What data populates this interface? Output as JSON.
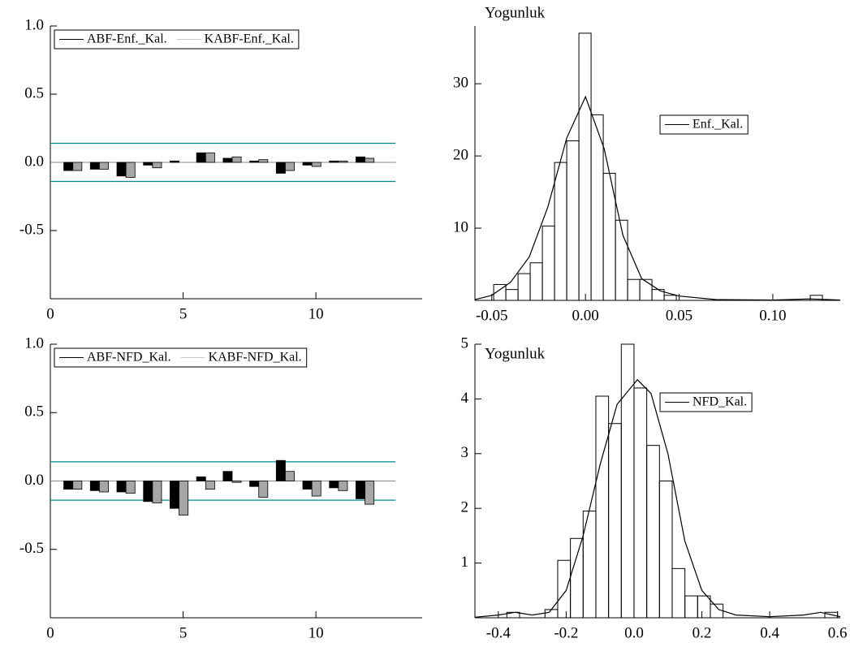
{
  "chart_data": [
    {
      "type": "acf",
      "x": [
        1,
        2,
        3,
        4,
        5,
        6,
        7,
        8,
        9,
        10,
        11,
        12
      ],
      "series": [
        {
          "name": "ABF-Enf._Kal.",
          "color": "#000000",
          "values": [
            -0.06,
            -0.05,
            -0.1,
            -0.02,
            0.01,
            0.07,
            0.03,
            0.01,
            -0.08,
            -0.02,
            0.01,
            0.04
          ]
        },
        {
          "name": "KABF-Enf._Kal.",
          "color": "#a6a6a6",
          "values": [
            -0.06,
            -0.05,
            -0.11,
            -0.04,
            0.0,
            0.07,
            0.04,
            0.02,
            -0.06,
            -0.03,
            0.01,
            0.03
          ]
        }
      ],
      "confidence_bands": [
        0.14,
        -0.14
      ],
      "band_color": "#008b8b",
      "xlim": [
        0,
        14
      ],
      "xticks": [
        0,
        5,
        10
      ],
      "ylim": [
        -1,
        1
      ],
      "yticks": [
        {
          "value": 1,
          "label": "1.0"
        },
        {
          "value": 0.5,
          "label": "0.5"
        },
        {
          "value": 0,
          "label": "0.0"
        },
        {
          "value": -0.5,
          "label": "-0.5"
        }
      ],
      "legend": "upper left"
    },
    {
      "type": "histogram",
      "ylabel": "Yogunluk",
      "bins": [
        -0.049,
        -0.0425,
        -0.036,
        -0.0295,
        -0.023,
        -0.0165,
        -0.01,
        -0.0035,
        0.003,
        0.0095,
        0.016,
        0.0225,
        0.029,
        0.0355,
        0.042,
        0.0485,
        0.055,
        0.0615,
        0.068,
        0.0745,
        0.081,
        0.0875,
        0.094,
        0.1005,
        0.107,
        0.1135,
        0.12,
        0.1265
      ],
      "counts": [
        2.2,
        1.5,
        3.7,
        5.2,
        10.3,
        19.1,
        22.1,
        37,
        25.7,
        17.6,
        11.1,
        2.9,
        2.9,
        1.5,
        0.7,
        0,
        0,
        0,
        0,
        0,
        0,
        0,
        0,
        0,
        0,
        0,
        0.7
      ],
      "color": "#000000",
      "series": [
        {
          "name": "Enf._Kal.",
          "color": "#000000",
          "x": [
            -0.059,
            -0.05,
            -0.04,
            -0.03,
            -0.02,
            -0.01,
            0,
            0.01,
            0.02,
            0.03,
            0.04,
            0.05,
            0.07,
            0.1,
            0.12,
            0.136
          ],
          "values": [
            0.1,
            0.7,
            2.5,
            6,
            13,
            22.5,
            28.2,
            21,
            9,
            3,
            1.3,
            0.6,
            0.1,
            0.05,
            0.2,
            0.05
          ]
        }
      ],
      "xlim": [
        -0.059,
        0.136
      ],
      "xticks": [
        {
          "value": -0.05,
          "label": "-0.05"
        },
        {
          "value": 0,
          "label": "0.00"
        },
        0.05,
        {
          "value": 0.1,
          "label": "0.10"
        }
      ],
      "ylim": [
        0,
        38
      ],
      "yticks": [
        10,
        20,
        30
      ],
      "legend": "right"
    },
    {
      "type": "acf",
      "x": [
        1,
        2,
        3,
        4,
        5,
        6,
        7,
        8,
        9,
        10,
        11,
        12
      ],
      "series": [
        {
          "name": "ABF-NFD_Kal.",
          "color": "#000000",
          "values": [
            -0.06,
            -0.07,
            -0.08,
            -0.15,
            -0.2,
            0.03,
            0.07,
            -0.04,
            0.15,
            -0.06,
            -0.05,
            -0.13
          ]
        },
        {
          "name": "KABF-NFD_Kal.",
          "color": "#a6a6a6",
          "values": [
            -0.06,
            -0.08,
            -0.09,
            -0.16,
            -0.25,
            -0.06,
            -0.01,
            -0.12,
            0.07,
            -0.11,
            -0.07,
            -0.17
          ]
        }
      ],
      "confidence_bands": [
        0.14,
        -0.14
      ],
      "band_color": "#008b8b",
      "xlim": [
        0,
        14
      ],
      "xticks": [
        0,
        5,
        10
      ],
      "ylim": [
        -1,
        1
      ],
      "yticks": [
        {
          "value": 1,
          "label": "1.0"
        },
        {
          "value": 0.5,
          "label": "0.5"
        },
        {
          "value": 0,
          "label": "0.0"
        },
        {
          "value": -0.5,
          "label": "-0.5"
        }
      ],
      "legend": "upper left"
    },
    {
      "type": "histogram",
      "ylabel": "Yogunluk",
      "bins": [
        -0.375,
        -0.3375,
        -0.3,
        -0.2625,
        -0.225,
        -0.1875,
        -0.15,
        -0.1125,
        -0.075,
        -0.0375,
        0,
        0.0375,
        0.075,
        0.1125,
        0.15,
        0.1875,
        0.225,
        0.2625,
        0.3,
        0.3375,
        0.375,
        0.4125,
        0.45,
        0.4875,
        0.525,
        0.5625,
        0.6
      ],
      "counts": [
        0.1,
        0,
        0,
        0.15,
        1.05,
        1.45,
        1.95,
        4.05,
        3.55,
        5.0,
        4.2,
        3.15,
        2.5,
        0.9,
        0.4,
        0.4,
        0.25,
        0,
        0,
        0,
        0,
        0,
        0,
        0,
        0,
        0.1
      ],
      "color": "#000000",
      "series": [
        {
          "name": "NFD_Kal.",
          "color": "#000000",
          "x": [
            -0.469,
            -0.4,
            -0.35,
            -0.3,
            -0.25,
            -0.2,
            -0.15,
            -0.1,
            -0.05,
            0.01,
            0.05,
            0.1,
            0.15,
            0.2,
            0.25,
            0.3,
            0.4,
            0.5,
            0.55,
            0.608
          ],
          "values": [
            0.01,
            0.05,
            0.1,
            0.05,
            0.1,
            0.5,
            1.5,
            2.8,
            3.9,
            4.35,
            4.1,
            3.0,
            1.4,
            0.5,
            0.15,
            0.05,
            0.02,
            0.05,
            0.1,
            0.02
          ]
        }
      ],
      "xlim": [
        -0.469,
        0.608
      ],
      "xticks": [
        -0.4,
        -0.2,
        {
          "value": 0,
          "label": "0.0"
        },
        0.2,
        0.4,
        0.6
      ],
      "ylim": [
        0,
        5
      ],
      "yticks": [
        1,
        2,
        3,
        4,
        5
      ],
      "legend": "right"
    }
  ]
}
